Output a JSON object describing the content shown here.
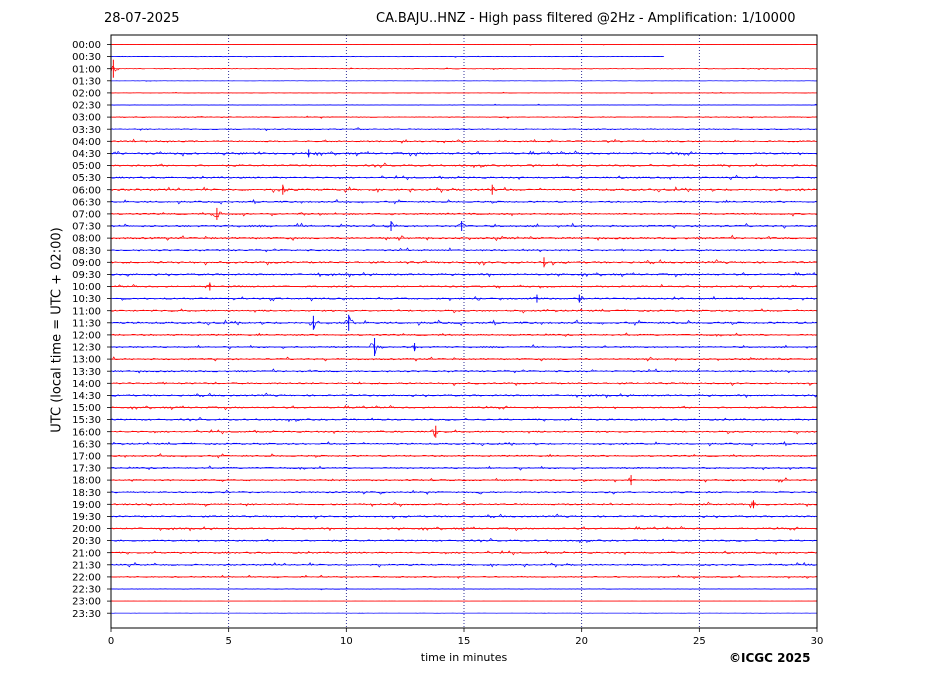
{
  "header": {
    "date": "28-07-2025",
    "title": "CA.BAJU..HNZ - High pass filtered @2Hz - Amplification: 1/10000"
  },
  "copyright": "©ICGC 2025",
  "chart_data": {
    "type": "line",
    "title": "CA.BAJU..HNZ - High pass filtered @2Hz - Amplification: 1/10000",
    "date": "28-07-2025",
    "xlabel": "time in minutes",
    "ylabel": "UTC (local time = UTC + 02:00)",
    "xlim": [
      0,
      30
    ],
    "x_ticks": [
      0,
      5,
      10,
      15,
      20,
      25,
      30
    ],
    "x_tick_labels": [
      "0",
      "5",
      "10",
      "15",
      "20",
      "25",
      "30"
    ],
    "grid": "vertical dotted lines at 5, 10, 15, 20, 25",
    "row_labels": [
      "00:00",
      "00:30",
      "01:00",
      "01:30",
      "02:00",
      "02:30",
      "03:00",
      "03:30",
      "04:00",
      "04:30",
      "05:00",
      "05:30",
      "06:00",
      "06:30",
      "07:00",
      "07:30",
      "08:00",
      "08:30",
      "09:00",
      "09:30",
      "10:00",
      "10:30",
      "11:00",
      "11:30",
      "12:00",
      "12:30",
      "13:00",
      "13:30",
      "14:00",
      "14:30",
      "15:00",
      "15:30",
      "16:00",
      "16:30",
      "17:00",
      "17:30",
      "18:00",
      "18:30",
      "19:00",
      "19:30",
      "20:00",
      "20:30",
      "21:00",
      "21:30",
      "22:00",
      "22:30",
      "23:00",
      "23:30"
    ],
    "row_colors": [
      "#ff0000",
      "#0000ff"
    ],
    "row_noise": [
      0.3,
      0.3,
      0.4,
      0.2,
      0.3,
      0.4,
      0.6,
      0.7,
      0.9,
      1.2,
      1.1,
      1.0,
      1.2,
      1.0,
      1.0,
      1.2,
      1.2,
      1.0,
      1.2,
      1.1,
      1.0,
      1.0,
      1.0,
      1.2,
      1.0,
      1.0,
      1.0,
      1.0,
      1.0,
      1.0,
      1.0,
      1.0,
      1.0,
      1.0,
      1.0,
      1.0,
      1.0,
      1.0,
      1.0,
      1.0,
      1.0,
      1.0,
      1.0,
      1.0,
      0.8,
      0.5,
      0.1,
      0.1
    ],
    "data_end_minute": {
      "00:30": 23.5
    },
    "row_gap": {
      "01:00": [
        1.5,
        1.8
      ]
    },
    "events": [
      {
        "row": "01:00",
        "minute": 0.1,
        "amp": 9
      },
      {
        "row": "04:30",
        "minute": 8.4,
        "amp": 4
      },
      {
        "row": "06:00",
        "minute": 7.3,
        "amp": 5
      },
      {
        "row": "06:00",
        "minute": 16.2,
        "amp": 5
      },
      {
        "row": "07:00",
        "minute": 4.5,
        "amp": 6
      },
      {
        "row": "07:30",
        "minute": 11.9,
        "amp": 5
      },
      {
        "row": "07:30",
        "minute": 14.9,
        "amp": 5
      },
      {
        "row": "09:00",
        "minute": 18.4,
        "amp": 5
      },
      {
        "row": "10:00",
        "minute": 4.2,
        "amp": 4
      },
      {
        "row": "10:30",
        "minute": 18.1,
        "amp": 4
      },
      {
        "row": "10:30",
        "minute": 19.9,
        "amp": 4
      },
      {
        "row": "11:30",
        "minute": 8.6,
        "amp": 7
      },
      {
        "row": "11:30",
        "minute": 10.1,
        "amp": 8
      },
      {
        "row": "12:30",
        "minute": 11.2,
        "amp": 9
      },
      {
        "row": "12:30",
        "minute": 12.9,
        "amp": 4
      },
      {
        "row": "16:00",
        "minute": 13.8,
        "amp": 6
      },
      {
        "row": "18:00",
        "minute": 22.1,
        "amp": 5
      },
      {
        "row": "19:00",
        "minute": 27.3,
        "amp": 4
      }
    ]
  }
}
